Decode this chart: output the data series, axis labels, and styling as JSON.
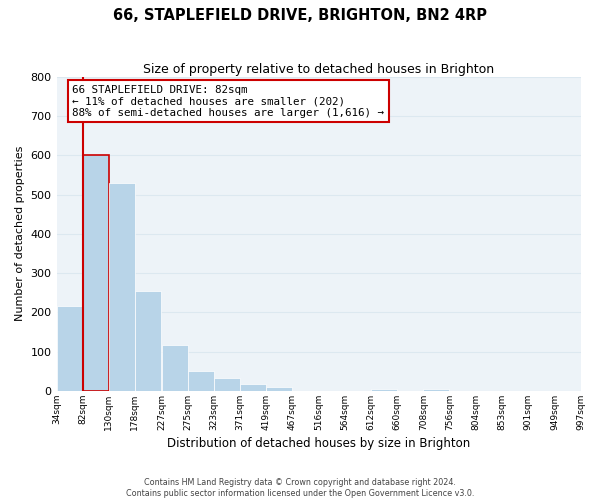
{
  "title": "66, STAPLEFIELD DRIVE, BRIGHTON, BN2 4RP",
  "subtitle": "Size of property relative to detached houses in Brighton",
  "xlabel": "Distribution of detached houses by size in Brighton",
  "ylabel": "Number of detached properties",
  "bar_left_edges": [
    34,
    82,
    130,
    178,
    227,
    275,
    323,
    371,
    419,
    467,
    516,
    564,
    612,
    660,
    708,
    756,
    804,
    853,
    901,
    949
  ],
  "bar_heights": [
    215,
    600,
    530,
    255,
    118,
    50,
    33,
    18,
    10,
    1,
    0,
    0,
    5,
    0,
    5,
    0,
    0,
    0,
    0,
    0
  ],
  "bin_width": 48,
  "bar_color": "#b8d4e8",
  "highlight_bar_index": 1,
  "highlight_color": "#cc0000",
  "ylim": [
    0,
    800
  ],
  "yticks": [
    0,
    100,
    200,
    300,
    400,
    500,
    600,
    700,
    800
  ],
  "x_tick_labels": [
    "34sqm",
    "82sqm",
    "130sqm",
    "178sqm",
    "227sqm",
    "275sqm",
    "323sqm",
    "371sqm",
    "419sqm",
    "467sqm",
    "516sqm",
    "564sqm",
    "612sqm",
    "660sqm",
    "708sqm",
    "756sqm",
    "804sqm",
    "853sqm",
    "901sqm",
    "949sqm",
    "997sqm"
  ],
  "annotation_title": "66 STAPLEFIELD DRIVE: 82sqm",
  "annotation_line1": "← 11% of detached houses are smaller (202)",
  "annotation_line2": "88% of semi-detached houses are larger (1,616) →",
  "grid_color": "#dce8f0",
  "background_color": "#edf3f8",
  "footer_line1": "Contains HM Land Registry data © Crown copyright and database right 2024.",
  "footer_line2": "Contains public sector information licensed under the Open Government Licence v3.0."
}
